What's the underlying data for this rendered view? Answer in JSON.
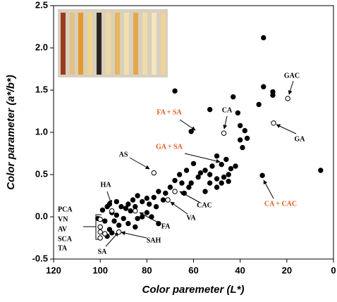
{
  "chart_data": {
    "type": "scatter",
    "xlabel": "Color paremeter (L*)",
    "ylabel": "Color parameter (a*/b*)",
    "xlim": [
      120,
      0
    ],
    "ylim": [
      -0.5,
      2.5
    ],
    "xticks": [
      120,
      100,
      80,
      60,
      40,
      20,
      0
    ],
    "yticks": [
      -0.5,
      {
        "value": 0,
        "label": "0.0"
      },
      0.5,
      {
        "value": 1,
        "label": "1.0"
      },
      1.5,
      {
        "value": 2,
        "label": "2.0"
      },
      2.5
    ],
    "series": [
      {
        "marker": "filled",
        "color": "#000000",
        "x": [
          30,
          68,
          30,
          26,
          26,
          43,
          53,
          32,
          61,
          41,
          40,
          38,
          37,
          39,
          40,
          30.5,
          5.5,
          50,
          48,
          46,
          52,
          55,
          44,
          42,
          45,
          47,
          50,
          53,
          57,
          60,
          63,
          66,
          58,
          53,
          50,
          48,
          45,
          55,
          62,
          65,
          68,
          70,
          72,
          75,
          73,
          77,
          76,
          79,
          80,
          82,
          84,
          86,
          88,
          80,
          82,
          78,
          75,
          85,
          87,
          89,
          91,
          93,
          95,
          97,
          99,
          90,
          92,
          94,
          96,
          98,
          100,
          101,
          97,
          95,
          88,
          85,
          96,
          93,
          84,
          61,
          64
        ],
        "y": [
          2.12,
          1.49,
          1.54,
          1.48,
          1.44,
          1.42,
          1.27,
          1.33,
          1.01,
          1.23,
          1.08,
          1.02,
          0.93,
          0.82,
          0.91,
          0.49,
          0.55,
          0.72,
          0.62,
          0.68,
          0.6,
          0.55,
          0.57,
          0.6,
          0.5,
          0.47,
          0.45,
          0.5,
          0.52,
          0.63,
          0.55,
          0.5,
          0.47,
          0.4,
          0.35,
          0.4,
          0.42,
          0.3,
          0.35,
          0.4,
          0.43,
          0.35,
          0.28,
          0.3,
          0.2,
          0.23,
          0.12,
          0.15,
          0.22,
          0.18,
          0.25,
          0.2,
          0.15,
          0.05,
          0,
          0,
          -0.08,
          0.12,
          0.07,
          0.1,
          0.12,
          0.02,
          0.05,
          0.12,
          0.08,
          -0.02,
          -0.1,
          -0.05,
          -0.15,
          -0.05,
          -0.12,
          -0.02,
          -0.23,
          -0.19,
          -0.08,
          -0.12,
          0.15,
          0.18,
          -0.02,
          0.4,
          0.28
        ]
      },
      {
        "marker": "open",
        "color": "#000000",
        "x": [
          19.6,
          25.7,
          47,
          77,
          68,
          71,
          85,
          92,
          95,
          100,
          100,
          100,
          100,
          98
        ],
        "y": [
          1.4,
          1.11,
          0.99,
          0.52,
          0.3,
          0.2,
          0.07,
          -0.18,
          0.07,
          -0.03,
          -0.12,
          -0.18,
          -0.25,
          -0.2
        ]
      }
    ],
    "annotations": [
      {
        "text": "GAC",
        "color": "#000000"
      },
      {
        "text": "GA",
        "color": "#000000"
      },
      {
        "text": "CA",
        "color": "#000000"
      },
      {
        "text": "FA + SA",
        "color": "#e2581c"
      },
      {
        "text": "GA + SA",
        "color": "#e2581c"
      },
      {
        "text": "AS",
        "color": "#000000"
      },
      {
        "text": "HA",
        "color": "#000000"
      },
      {
        "text": "CAC",
        "color": "#000000"
      },
      {
        "text": "VA",
        "color": "#000000"
      },
      {
        "text": "FA",
        "color": "#000000"
      },
      {
        "text": "SAH",
        "color": "#000000"
      },
      {
        "text": "SA",
        "color": "#000000"
      },
      {
        "text": "PCA",
        "color": "#000000"
      },
      {
        "text": "VN",
        "color": "#000000"
      },
      {
        "text": "AV",
        "color": "#000000"
      },
      {
        "text": "SCA",
        "color": "#000000"
      },
      {
        "text": "TA",
        "color": "#000000"
      },
      {
        "text": "CA + CAC",
        "color": "#e2581c"
      }
    ]
  }
}
